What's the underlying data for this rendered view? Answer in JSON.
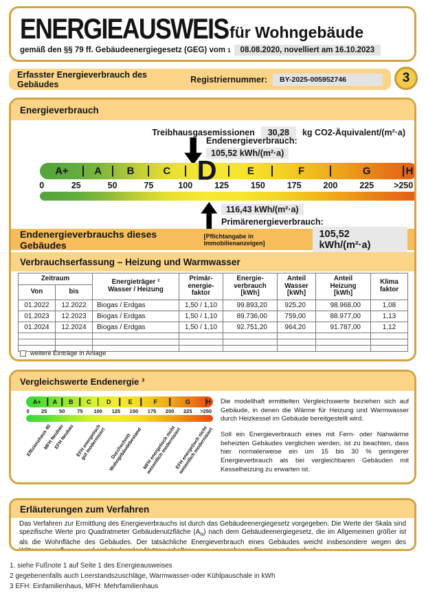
{
  "page": {
    "number": "3"
  },
  "header": {
    "title": "ENERGIEAUSWEIS",
    "subtitle": "für Wohngebäude",
    "law_prefix": "gemäß den §§ 79 ff. Gebäudeenergiegesetz (GEG) vom",
    "law_footnote": "1",
    "law_date": "08.08.2020, novelliert am 16.10.2023"
  },
  "registration": {
    "title": "Erfasster Energieverbrauch des Gebäudes",
    "number_label": "Registriernummer:",
    "number_value": "BY-2025-005952746"
  },
  "energy_section": {
    "title": "Energieverbrauch",
    "ghg_label": "Treibhausgasemissionen",
    "ghg_value": "30,28",
    "ghg_unit": "kg CO2-Äquivalent/(m²·a)",
    "end_energy_label": "Endenergieverbrauch:",
    "end_energy_value_text": "105,52 kWh/(m²·a)",
    "primary_energy_value_text": "116,43 kWh/(m²·a)",
    "primary_energy_label": "Primärenergieverbrauch:",
    "scale": {
      "classes": [
        "A+",
        "A",
        "B",
        "C",
        "D",
        "E",
        "F",
        "G",
        "H"
      ],
      "ticks": [
        "0",
        "25",
        "50",
        "75",
        "100",
        "125",
        "150",
        "175",
        "200",
        "225",
        ">250"
      ],
      "current_class": "D",
      "end_energy_kwh_m2a": 105.52,
      "primary_energy_kwh_m2a": 116.43,
      "axis_max": 260
    }
  },
  "end_energy_bar": {
    "label": "Endenergieverbrauchs dieses Gebäudes",
    "note": "[Pflichtangabe in Immobilienanzeigen]",
    "value": "105,52 kWh/(m²·a)"
  },
  "consumption_table": {
    "title": "Verbrauchserfassung – Heizung und Warmwasser",
    "headers": {
      "zeitraum": "Zeitraum",
      "von": "Von",
      "bis": "bis",
      "traeger": "Energieträger ²\nWasser / Heizung",
      "pef": "Primär-\nenergie-\nfaktor",
      "verbrauch": "Energie-\nverbrauch\n[kWh]",
      "wasser": "Anteil\nWasser\n[kWh]",
      "heizung": "Anteil\nHeizung\n[kWh]",
      "klima": "Klima\nfaktor"
    },
    "rows": [
      [
        "01.2022",
        "12.2022",
        "Biogas / Erdgas",
        "1,50 / 1,10",
        "99.893,20",
        "925,20",
        "98.968,00",
        "1,08"
      ],
      [
        "01.2023",
        "12.2023",
        "Biogas / Erdgas",
        "1,50 / 1,10",
        "89.736,00",
        "759,00",
        "88.977,00",
        "1,13"
      ],
      [
        "01.2024",
        "12.2024",
        "Biogas / Erdgas",
        "1,50 / 1,10",
        "92.751,20",
        "964,20",
        "91.787,00",
        "1,12"
      ]
    ],
    "more_entries_label": "weitere Einträge in Anlage"
  },
  "comparison": {
    "title": "Vergleichswerte Endenergie ³",
    "scale": {
      "classes": [
        "A+",
        "A",
        "B",
        "C",
        "D",
        "E",
        "F",
        "G",
        "H"
      ],
      "ticks": [
        "0",
        "25",
        "50",
        "75",
        "100",
        "125",
        "150",
        "175",
        "200",
        "225",
        ">250"
      ],
      "axis_max": 260
    },
    "markers": [
      {
        "label": "Effizienzhaus 40",
        "value": 30
      },
      {
        "label": "MFH Neubau",
        "value": 48
      },
      {
        "label": "EFH Neubau",
        "value": 62
      },
      {
        "label": "EFH energetisch\ngut modernisiert",
        "value": 100
      },
      {
        "label": "Durchschnitt\nWohngebäudebestand",
        "value": 150
      },
      {
        "label": "MFH energetisch nicht\nwesentlich modernisiert",
        "value": 205
      },
      {
        "label": "EFH energetisch nicht\nwesentlich modernisiert",
        "value": 250
      }
    ],
    "paragraph1": "Die modellhaft ermittelten Vergleichswerte beziehen sich auf Gebäude, in denen die Wärme für Heizung und Warmwasser durch Heizkessel im Gebäude bereitgestellt wird.",
    "paragraph2": "Soll ein Energieverbrauch eines mit Fern- oder Nahwärme beheizten Gebäudes verglichen werden, ist zu beachten, dass hier normalerweise ein um 15 bis 30 % geringerer Energieverbrauch als bei vergleichbaren Gebäuden mit Kesselheizung zu erwarten ist."
  },
  "explanation": {
    "title": "Erläuterungen zum Verfahren",
    "body1": "Das Verfahren zur Ermittlung des Energieverbrauchs ist durch das Gebäudeenergiegesetz vorgegeben. Die Werte der Skala sind spezifische Werte pro Quadratmeter Gebäudenutzfläche (A",
    "body_sub": "N",
    "body2": ") nach dem Gebäudeenergiegesetz, die im Allgemeinen größer ist als die Wohnfläche des Gebäudes. Der tatsächliche Energieverbrauch eines Gebäudes weicht insbesondere wegen des Witterungseinflusses und sich ändernden Nutzerverhaltens vom angegebenen Energieverbrauch ab."
  },
  "footnotes": [
    "1. siehe Fußnote 1 auf Seite 1 des Energieausweises",
    "2 gegebenenfalls auch Leerstandszuschläge, Warmwasser-oder Kühlpauschale in kWh",
    "3 EFH: Einfamilienhaus, MFH: Mehrfamilienhaus"
  ],
  "colors": {
    "border_gold": "#D5A33E",
    "band_orange": "#FBD488",
    "highlight_bar_orange": "#F7BD5A",
    "value_box_gray": "#E8E8E8"
  }
}
